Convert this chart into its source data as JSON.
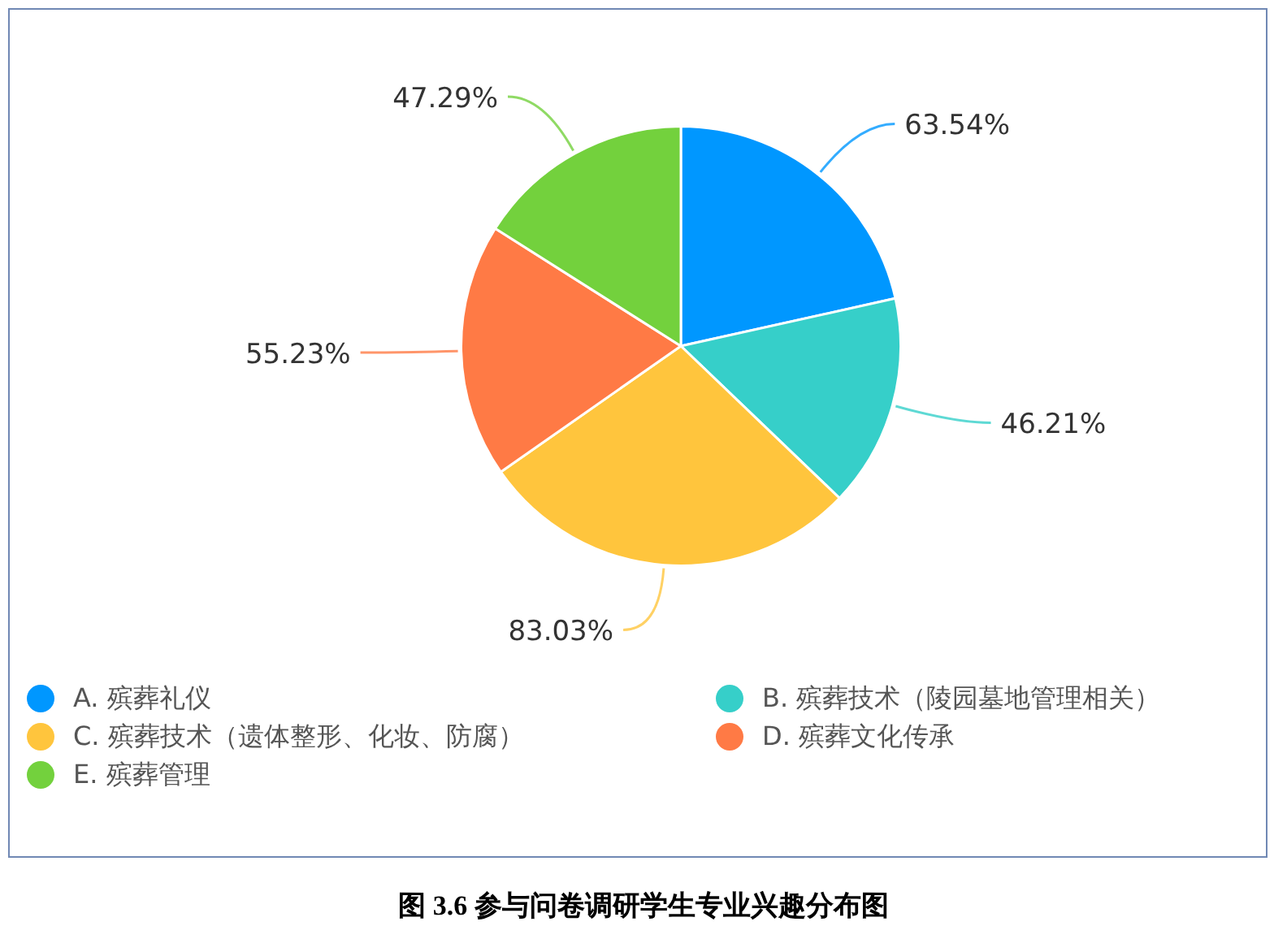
{
  "chart_data": {
    "type": "pie",
    "categories": [
      "A. 殡葬礼仪",
      "B. 殡葬技术（陵园墓地管理相关）",
      "C. 殡葬技术（遗体整形、化妆、防腐）",
      "D. 殡葬文化传承",
      "E. 殡葬管理"
    ],
    "values": [
      63.54,
      46.21,
      83.03,
      55.23,
      47.29
    ],
    "value_labels": [
      "63.54%",
      "46.21%",
      "83.03%",
      "55.23%",
      "47.29%"
    ],
    "colors": [
      "#0097ff",
      "#36cfc9",
      "#ffc53d",
      "#ff7a45",
      "#73d13d"
    ],
    "legend": "bottom",
    "annotations": [
      "图 3.6 参与问卷调研学生专业兴趣分布图"
    ]
  }
}
